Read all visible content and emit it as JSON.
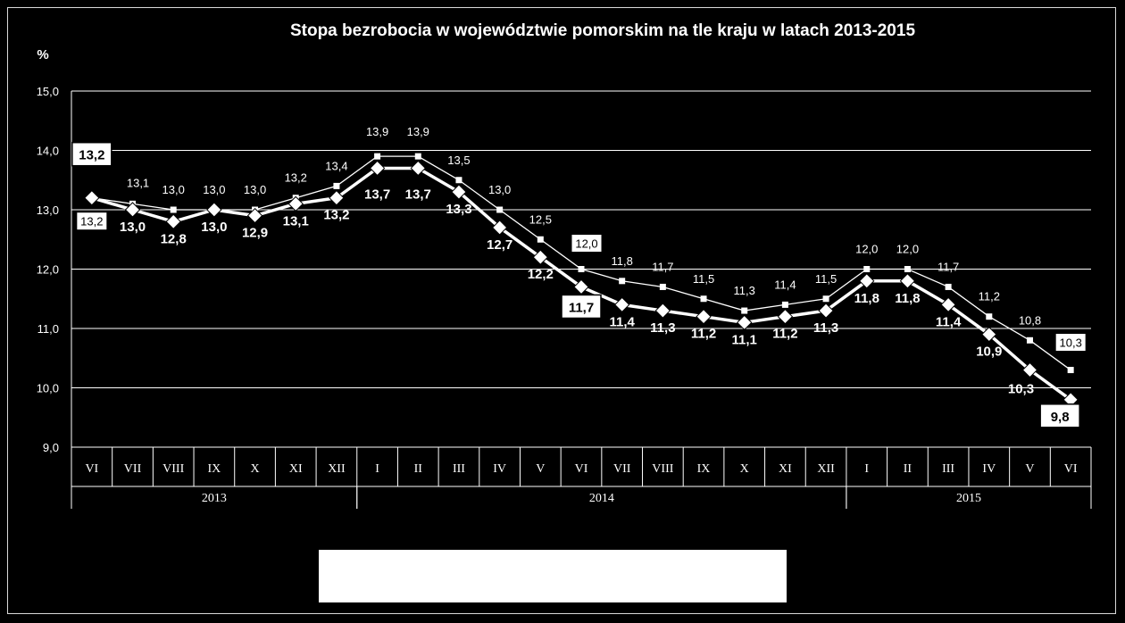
{
  "chart_data": {
    "type": "line",
    "title": "Stopa bezrobocia w województwie pomorskim na tle kraju w latach 2013-2015",
    "unit_label": "%",
    "ylim": [
      9.0,
      15.0
    ],
    "yticks": [
      "9,0",
      "10,0",
      "11,0",
      "12,0",
      "13,0",
      "14,0",
      "15,0"
    ],
    "grid": true,
    "categories": [
      "VI",
      "VII",
      "VIII",
      "IX",
      "X",
      "XI",
      "XII",
      "I",
      "II",
      "III",
      "IV",
      "V",
      "VI",
      "VII",
      "VIII",
      "IX",
      "X",
      "XI",
      "XII",
      "I",
      "II",
      "III",
      "IV",
      "V",
      "VI"
    ],
    "years": [
      {
        "label": "2013",
        "start": 0,
        "end": 6
      },
      {
        "label": "2014",
        "start": 7,
        "end": 18
      },
      {
        "label": "2015",
        "start": 19,
        "end": 24
      }
    ],
    "series": [
      {
        "key": "country",
        "values": [
          13.2,
          13.1,
          13.0,
          13.0,
          13.0,
          13.2,
          13.4,
          13.9,
          13.9,
          13.5,
          13.0,
          12.5,
          12.0,
          11.8,
          11.7,
          11.5,
          11.3,
          11.4,
          11.5,
          12.0,
          12.0,
          11.7,
          11.2,
          10.8,
          10.3
        ],
        "labels": [
          "13,2",
          "13,1",
          "13,0",
          "13,0",
          "13,0",
          "13,2",
          "13,4",
          "13,9",
          "13,9",
          "13,5",
          "13,0",
          "12,5",
          "12,0",
          "11,8",
          "11,7",
          "11,5",
          "11,3",
          "11,4",
          "11,5",
          "12,0",
          "12,0",
          "11,7",
          "11,2",
          "10,8",
          "10,3"
        ],
        "boxed": [
          0,
          12,
          24
        ],
        "color": "#ffffff"
      },
      {
        "key": "region",
        "values": [
          13.2,
          13.0,
          12.8,
          13.0,
          12.9,
          13.1,
          13.2,
          13.7,
          13.7,
          13.3,
          12.7,
          12.2,
          11.7,
          11.4,
          11.3,
          11.2,
          11.1,
          11.2,
          11.3,
          11.8,
          11.8,
          11.4,
          10.9,
          10.3,
          9.8
        ],
        "labels": [
          "13,2",
          "13,0",
          "12,8",
          "13,0",
          "12,9",
          "13,1",
          "13,2",
          "13,7",
          "13,7",
          "13,3",
          "12,7",
          "12,2",
          "11,7",
          "11,4",
          "11,3",
          "11,2",
          "11,1",
          "11,2",
          "11,3",
          "11,8",
          "11,8",
          "11,4",
          "10,9",
          "10,3",
          "9,8"
        ],
        "boxed": [
          0,
          12,
          24
        ],
        "color": "#ffffff"
      }
    ]
  }
}
